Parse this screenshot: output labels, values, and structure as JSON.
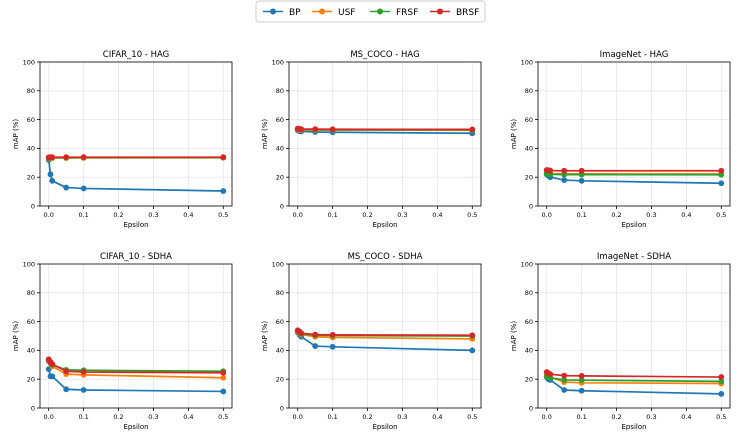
{
  "figure": {
    "legend": {
      "placement": "top-center",
      "entries": [
        {
          "name": "BP",
          "color": "#1f77b4"
        },
        {
          "name": "USF",
          "color": "#ff7f0e"
        },
        {
          "name": "FRSF",
          "color": "#2ca02c"
        },
        {
          "name": "BRSF",
          "color": "#d62728"
        }
      ]
    }
  },
  "chart_data": [
    {
      "type": "line",
      "title": "CIFAR_10 - HAG",
      "xlabel": "Epsilon",
      "ylabel": "mAP (%)",
      "xlim": [
        -0.025,
        0.525
      ],
      "ylim": [
        0,
        100
      ],
      "xticks": [
        0.0,
        0.1,
        0.2,
        0.3,
        0.4,
        0.5
      ],
      "xtick_labels": [
        "0.0",
        "0.1",
        "0.2",
        "0.3",
        "0.4",
        "0.5"
      ],
      "yticks": [
        0,
        20,
        40,
        60,
        80,
        100
      ],
      "ytick_labels": [
        "0",
        "20",
        "40",
        "60",
        "80",
        "100"
      ],
      "grid": true,
      "x": [
        0.0,
        0.005,
        0.01,
        0.05,
        0.1,
        0.5
      ],
      "series": [
        {
          "name": "BP",
          "color": "#1f77b4",
          "values": [
            32.0,
            22.0,
            17.5,
            12.8,
            12.2,
            10.4
          ]
        },
        {
          "name": "USF",
          "color": "#ff7f0e",
          "values": [
            33.0,
            33.2,
            33.3,
            33.3,
            33.4,
            33.5
          ]
        },
        {
          "name": "FRSF",
          "color": "#2ca02c",
          "values": [
            33.4,
            33.5,
            33.6,
            33.6,
            33.7,
            33.7
          ]
        },
        {
          "name": "BRSF",
          "color": "#d62728",
          "values": [
            33.8,
            33.9,
            33.9,
            33.9,
            33.9,
            33.9
          ]
        }
      ]
    },
    {
      "type": "line",
      "title": "MS_COCO - HAG",
      "xlabel": "Epsilon",
      "ylabel": "mAP (%)",
      "xlim": [
        -0.025,
        0.525
      ],
      "ylim": [
        0,
        100
      ],
      "xticks": [
        0.0,
        0.1,
        0.2,
        0.3,
        0.4,
        0.5
      ],
      "xtick_labels": [
        "0.0",
        "0.1",
        "0.2",
        "0.3",
        "0.4",
        "0.5"
      ],
      "yticks": [
        0,
        20,
        40,
        60,
        80,
        100
      ],
      "ytick_labels": [
        "0",
        "20",
        "40",
        "60",
        "80",
        "100"
      ],
      "grid": true,
      "x": [
        0.0,
        0.005,
        0.01,
        0.05,
        0.1,
        0.5
      ],
      "series": [
        {
          "name": "BP",
          "color": "#1f77b4",
          "values": [
            52.5,
            52.0,
            51.8,
            51.4,
            51.2,
            50.5
          ]
        },
        {
          "name": "USF",
          "color": "#ff7f0e",
          "values": [
            53.0,
            52.8,
            52.8,
            52.7,
            52.7,
            52.6
          ]
        },
        {
          "name": "FRSF",
          "color": "#2ca02c",
          "values": [
            53.4,
            53.3,
            53.2,
            53.1,
            53.0,
            52.9
          ]
        },
        {
          "name": "BRSF",
          "color": "#d62728",
          "values": [
            53.7,
            53.5,
            53.4,
            53.4,
            53.3,
            53.2
          ]
        }
      ]
    },
    {
      "type": "line",
      "title": "ImageNet - HAG",
      "xlabel": "Epsilon",
      "ylabel": "mAP (%)",
      "xlim": [
        -0.025,
        0.525
      ],
      "ylim": [
        0,
        100
      ],
      "xticks": [
        0.0,
        0.1,
        0.2,
        0.3,
        0.4,
        0.5
      ],
      "xtick_labels": [
        "0.0",
        "0.1",
        "0.2",
        "0.3",
        "0.4",
        "0.5"
      ],
      "yticks": [
        0,
        20,
        40,
        60,
        80,
        100
      ],
      "ytick_labels": [
        "0",
        "20",
        "40",
        "60",
        "80",
        "100"
      ],
      "grid": true,
      "x": [
        0.0,
        0.005,
        0.01,
        0.05,
        0.1,
        0.5
      ],
      "series": [
        {
          "name": "BP",
          "color": "#1f77b4",
          "values": [
            22.0,
            21.0,
            20.0,
            18.0,
            17.5,
            15.8
          ]
        },
        {
          "name": "USF",
          "color": "#ff7f0e",
          "values": [
            23.0,
            22.8,
            22.5,
            22.3,
            22.3,
            22.2
          ]
        },
        {
          "name": "FRSF",
          "color": "#2ca02c",
          "values": [
            22.5,
            22.2,
            22.0,
            21.8,
            21.8,
            21.7
          ]
        },
        {
          "name": "BRSF",
          "color": "#d62728",
          "values": [
            25.0,
            24.8,
            24.6,
            24.5,
            24.5,
            24.5
          ]
        }
      ]
    },
    {
      "type": "line",
      "title": "CIFAR_10 - SDHA",
      "xlabel": "Epsilon",
      "ylabel": "mAP (%)",
      "xlim": [
        -0.025,
        0.525
      ],
      "ylim": [
        0,
        100
      ],
      "xticks": [
        0.0,
        0.1,
        0.2,
        0.3,
        0.4,
        0.5
      ],
      "xtick_labels": [
        "0.0",
        "0.1",
        "0.2",
        "0.3",
        "0.4",
        "0.5"
      ],
      "yticks": [
        0,
        20,
        40,
        60,
        80,
        100
      ],
      "ytick_labels": [
        "0",
        "20",
        "40",
        "60",
        "80",
        "100"
      ],
      "grid": true,
      "x": [
        0.0,
        0.005,
        0.01,
        0.05,
        0.1,
        0.5
      ],
      "series": [
        {
          "name": "BP",
          "color": "#1f77b4",
          "values": [
            27.0,
            22.0,
            22.0,
            13.0,
            12.5,
            11.5
          ]
        },
        {
          "name": "USF",
          "color": "#ff7f0e",
          "values": [
            32.5,
            31.0,
            29.0,
            23.5,
            23.0,
            21.0
          ]
        },
        {
          "name": "FRSF",
          "color": "#2ca02c",
          "values": [
            33.0,
            31.5,
            30.0,
            26.5,
            26.2,
            25.5
          ]
        },
        {
          "name": "BRSF",
          "color": "#d62728",
          "values": [
            33.8,
            32.0,
            30.5,
            25.5,
            25.0,
            24.5
          ]
        }
      ]
    },
    {
      "type": "line",
      "title": "MS_COCO - SDHA",
      "xlabel": "Epsilon",
      "ylabel": "mAP (%)",
      "xlim": [
        -0.025,
        0.525
      ],
      "ylim": [
        0,
        100
      ],
      "xticks": [
        0.0,
        0.1,
        0.2,
        0.3,
        0.4,
        0.5
      ],
      "xtick_labels": [
        "0.0",
        "0.1",
        "0.2",
        "0.3",
        "0.4",
        "0.5"
      ],
      "yticks": [
        0,
        20,
        40,
        60,
        80,
        100
      ],
      "ytick_labels": [
        "0",
        "20",
        "40",
        "60",
        "80",
        "100"
      ],
      "grid": true,
      "x": [
        0.0,
        0.005,
        0.01,
        0.05,
        0.1,
        0.5
      ],
      "series": [
        {
          "name": "BP",
          "color": "#1f77b4",
          "values": [
            52.5,
            51.0,
            49.5,
            43.0,
            42.5,
            40.0
          ]
        },
        {
          "name": "USF",
          "color": "#ff7f0e",
          "values": [
            53.0,
            52.0,
            51.0,
            49.5,
            49.0,
            48.0
          ]
        },
        {
          "name": "FRSF",
          "color": "#2ca02c",
          "values": [
            53.5,
            52.5,
            51.5,
            50.5,
            50.3,
            50.0
          ]
        },
        {
          "name": "BRSF",
          "color": "#d62728",
          "values": [
            54.0,
            53.0,
            52.0,
            51.0,
            50.8,
            50.5
          ]
        }
      ]
    },
    {
      "type": "line",
      "title": "ImageNet - SDHA",
      "xlabel": "Epsilon",
      "ylabel": "mAP (%)",
      "xlim": [
        -0.025,
        0.525
      ],
      "ylim": [
        0,
        100
      ],
      "xticks": [
        0.0,
        0.1,
        0.2,
        0.3,
        0.4,
        0.5
      ],
      "xtick_labels": [
        "0.0",
        "0.1",
        "0.2",
        "0.3",
        "0.4",
        "0.5"
      ],
      "yticks": [
        0,
        20,
        40,
        60,
        80,
        100
      ],
      "ytick_labels": [
        "0",
        "20",
        "40",
        "60",
        "80",
        "100"
      ],
      "grid": true,
      "x": [
        0.0,
        0.005,
        0.01,
        0.05,
        0.1,
        0.5
      ],
      "series": [
        {
          "name": "BP",
          "color": "#1f77b4",
          "values": [
            21.5,
            20.0,
            19.5,
            12.5,
            12.0,
            9.8
          ]
        },
        {
          "name": "USF",
          "color": "#ff7f0e",
          "values": [
            23.0,
            22.0,
            21.5,
            18.0,
            17.5,
            17.0
          ]
        },
        {
          "name": "FRSF",
          "color": "#2ca02c",
          "values": [
            22.0,
            21.5,
            21.0,
            19.5,
            19.3,
            18.5
          ]
        },
        {
          "name": "BRSF",
          "color": "#d62728",
          "values": [
            25.0,
            24.0,
            23.5,
            22.5,
            22.3,
            21.5
          ]
        }
      ]
    }
  ]
}
